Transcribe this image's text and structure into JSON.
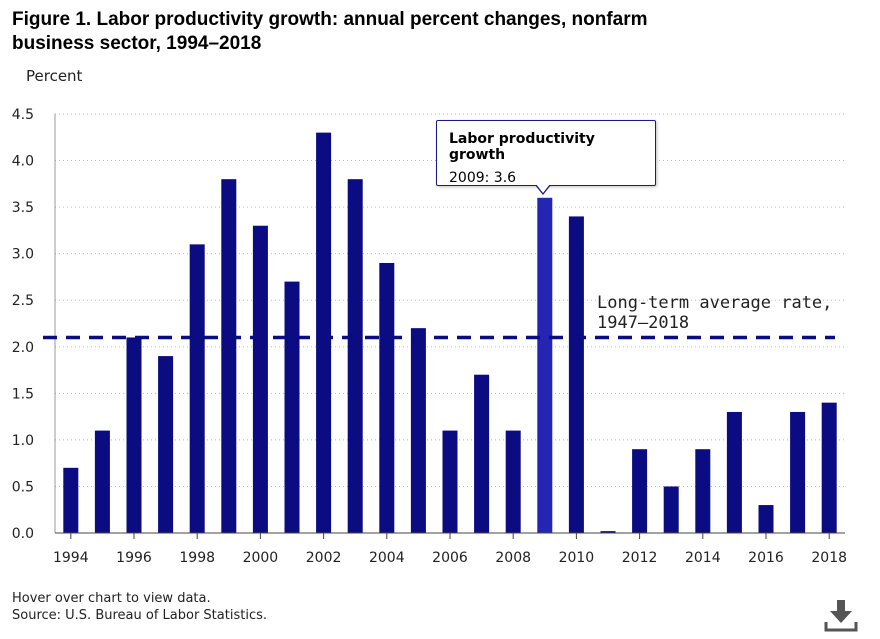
{
  "figure": {
    "title_line1": "Figure 1. Labor productivity growth: annual percent changes, nonfarm",
    "title_line2": "business sector, 1994–2018"
  },
  "footer": {
    "hover_note": "Hover over chart to view data.",
    "source": "Source: U.S. Bureau of Labor Statistics."
  },
  "tooltip": {
    "title": "Labor productivity growth",
    "value": "2009: 3.6"
  },
  "chart_data": {
    "type": "bar",
    "title": "Labor productivity growth: annual percent changes, nonfarm business sector, 1994–2018",
    "ylabel": "Percent",
    "xlabel": "",
    "ylim": [
      0,
      4.5
    ],
    "yticks": [
      0.0,
      0.5,
      1.0,
      1.5,
      2.0,
      2.5,
      3.0,
      3.5,
      4.0,
      4.5
    ],
    "ytick_labels": [
      "0.0",
      "0.5",
      "1.0",
      "1.5",
      "2.0",
      "2.5",
      "3.0",
      "3.5",
      "4.0",
      "4.5"
    ],
    "xtick_labels": [
      "1994",
      "1996",
      "1998",
      "2000",
      "2002",
      "2004",
      "2006",
      "2008",
      "2010",
      "2012",
      "2014",
      "2016",
      "2018"
    ],
    "categories": [
      "1994",
      "1995",
      "1996",
      "1997",
      "1998",
      "1999",
      "2000",
      "2001",
      "2002",
      "2003",
      "2004",
      "2005",
      "2006",
      "2007",
      "2008",
      "2009",
      "2010",
      "2011",
      "2012",
      "2013",
      "2014",
      "2015",
      "2016",
      "2017",
      "2018"
    ],
    "series": [
      {
        "name": "Labor productivity growth",
        "values": [
          0.7,
          1.1,
          2.1,
          1.9,
          3.1,
          3.8,
          3.3,
          2.7,
          4.3,
          3.8,
          2.9,
          2.2,
          1.1,
          1.7,
          1.1,
          3.6,
          3.4,
          0.02,
          0.9,
          0.5,
          0.9,
          1.3,
          0.3,
          1.3,
          1.4
        ],
        "color": "#0b0b82",
        "highlight_color": "#2525b4",
        "highlighted_category": "2009"
      }
    ],
    "reference_line": {
      "value": 2.1,
      "label_line1": "Long-term average rate,",
      "label_line2": "1947–2018",
      "color": "#0b0b82",
      "style": "dashed"
    },
    "grid": true
  }
}
